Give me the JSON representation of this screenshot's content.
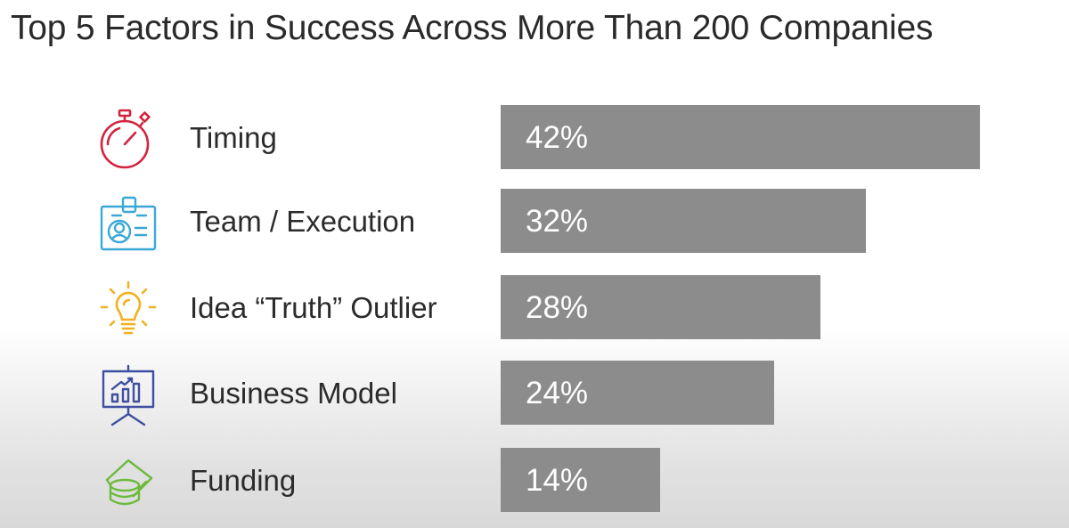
{
  "chart_data": {
    "type": "bar",
    "orientation": "horizontal",
    "title": "Top 5 Factors in Success Across More Than 200 Companies",
    "categories": [
      "Timing",
      "Team / Execution",
      "Idea “Truth” Outlier",
      "Business Model",
      "Funding"
    ],
    "values": [
      42,
      32,
      28,
      24,
      14
    ],
    "value_labels": [
      "42%",
      "32%",
      "28%",
      "24%",
      "14%"
    ],
    "icons": [
      "stopwatch-icon",
      "id-badge-icon",
      "lightbulb-icon",
      "presentation-board-icon",
      "money-stack-icon"
    ],
    "icon_colors": [
      "#d2233f",
      "#3aa8d6",
      "#f2b01e",
      "#3f4fa0",
      "#6cbb3c"
    ],
    "bar_color": "#8c8c8c",
    "xlim": [
      0,
      42
    ],
    "grid": false,
    "legend": "none"
  }
}
